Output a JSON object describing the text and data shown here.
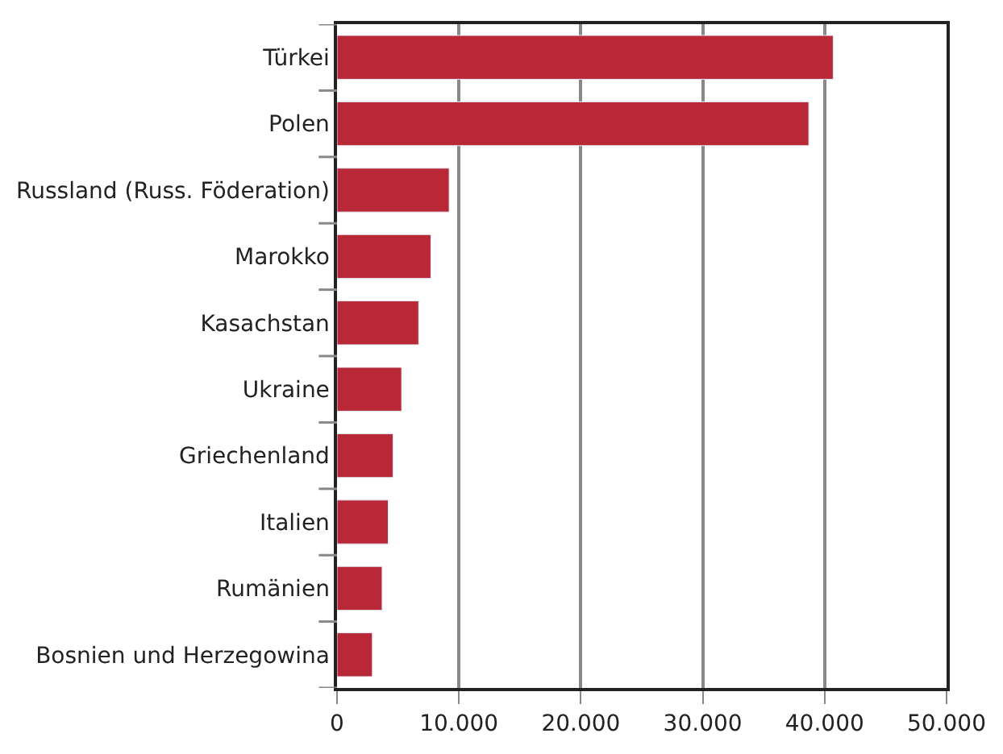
{
  "chart_data": {
    "type": "bar",
    "orientation": "horizontal",
    "categories": [
      "Türkei",
      "Polen",
      "Russland (Russ. Föderation)",
      "Marokko",
      "Kasachstan",
      "Ukraine",
      "Griechenland",
      "Italien",
      "Rumänien",
      "Bosnien und Herzegowina"
    ],
    "values": [
      40700,
      38700,
      9200,
      7700,
      6700,
      5300,
      4600,
      4200,
      3700,
      2900
    ],
    "color": "#b82837",
    "xlim": [
      0,
      50000
    ],
    "xticks": [
      0,
      {
        "value": 10000,
        "label": "10.000"
      },
      {
        "value": 20000,
        "label": "20.000"
      },
      {
        "value": 30000,
        "label": "30.000"
      },
      {
        "value": 40000,
        "label": "40.000"
      },
      {
        "value": 50000,
        "label": "50.000"
      }
    ],
    "grid": "x"
  }
}
